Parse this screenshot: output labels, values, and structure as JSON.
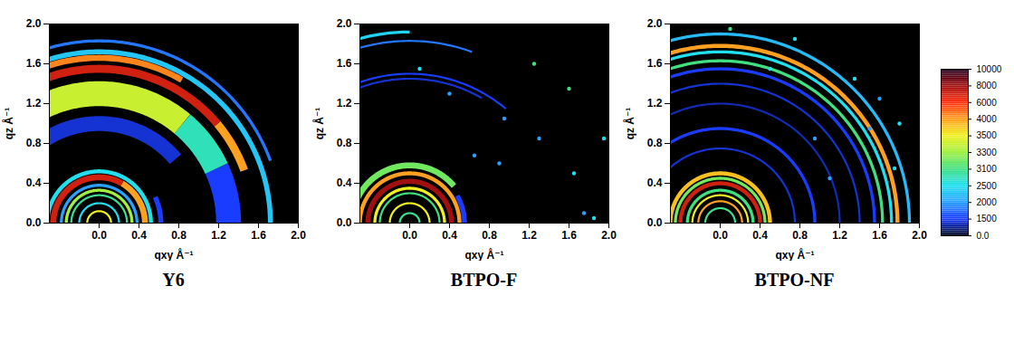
{
  "chart_data": [
    {
      "type": "rings",
      "title": "Y6",
      "xlabel": "qxy Å⁻¹",
      "ylabel": "qz Å⁻¹",
      "xlim": [
        -0.5,
        2.0
      ],
      "ylim": [
        0,
        2.0
      ],
      "xticks": [
        {
          "value": 0,
          "label": "0.0"
        },
        0.4,
        0.8,
        1.2,
        1.6,
        {
          "value": 2,
          "label": "2.0"
        }
      ],
      "yticks": [
        {
          "value": 0,
          "label": "0.0"
        },
        0.4,
        0.8,
        1.2,
        1.6,
        {
          "value": 2,
          "label": "2.0"
        }
      ],
      "rings": [
        {
          "q": 1.0,
          "width": 0.15,
          "from": 40,
          "to": 180,
          "intensity": 1200
        },
        {
          "q": 1.3,
          "width": 0.25,
          "from": 0,
          "to": 25,
          "intensity": 1500
        },
        {
          "q": 1.3,
          "width": 0.25,
          "from": 25,
          "to": 50,
          "intensity": 2800
        },
        {
          "q": 1.3,
          "width": 0.25,
          "from": 50,
          "to": 180,
          "intensity": 3400
        },
        {
          "q": 1.83,
          "width": 0.03,
          "from": 20,
          "to": 180,
          "intensity": 1800
        },
        {
          "q": 1.72,
          "width": 0.05,
          "from": 0,
          "to": 180,
          "intensity": 2300
        },
        {
          "q": 1.55,
          "width": 0.08,
          "from": 20,
          "to": 40,
          "intensity": 4000
        },
        {
          "q": 1.66,
          "width": 0.06,
          "from": 60,
          "to": 180,
          "intensity": 4500
        },
        {
          "q": 1.55,
          "width": 0.08,
          "from": 40,
          "to": 180,
          "intensity": 7000
        },
        {
          "q": 0.62,
          "width": 0.05,
          "from": 0,
          "to": 25,
          "intensity": 1500
        },
        {
          "q": 0.52,
          "width": 0.04,
          "from": 0,
          "to": 180,
          "intensity": 2500
        },
        {
          "q": 0.46,
          "width": 0.06,
          "from": 0,
          "to": 60,
          "intensity": 4000
        },
        {
          "q": 0.46,
          "width": 0.06,
          "from": 60,
          "to": 180,
          "intensity": 7000
        },
        {
          "q": 0.38,
          "width": 0.03,
          "from": 0,
          "to": 180,
          "intensity": 2000
        },
        {
          "q": 0.33,
          "width": 0.03,
          "from": 0,
          "to": 180,
          "intensity": 3300
        },
        {
          "q": 0.28,
          "width": 0.02,
          "from": 0,
          "to": 180,
          "intensity": 3000
        },
        {
          "q": 0.2,
          "width": 0.02,
          "from": 0,
          "to": 180,
          "intensity": 2500
        },
        {
          "q": 0.12,
          "width": 0.02,
          "from": 0,
          "to": 180,
          "intensity": 3500
        }
      ],
      "spots": []
    },
    {
      "type": "rings",
      "title": "BTPO-F",
      "xlabel": "qxy Å⁻¹",
      "ylabel": "qz Å⁻¹",
      "xlim": [
        -0.5,
        2.0
      ],
      "ylim": [
        0,
        2.0
      ],
      "xticks": [
        {
          "value": 0,
          "label": "0.0"
        },
        0.4,
        0.8,
        1.2,
        1.6,
        {
          "value": 2,
          "label": "2.0"
        }
      ],
      "yticks": [
        {
          "value": 0,
          "label": "0.0"
        },
        0.4,
        0.8,
        1.2,
        1.6,
        {
          "value": 2,
          "label": "2.0"
        }
      ],
      "rings": [
        {
          "q": 1.45,
          "width": 0.02,
          "from": 60,
          "to": 180,
          "intensity": 1200
        },
        {
          "q": 1.5,
          "width": 0.02,
          "from": 50,
          "to": 180,
          "intensity": 1500
        },
        {
          "q": 1.83,
          "width": 0.02,
          "from": 70,
          "to": 180,
          "intensity": 1800
        },
        {
          "q": 1.92,
          "width": 0.03,
          "from": 90,
          "to": 180,
          "intensity": 2400
        },
        {
          "q": 0.55,
          "width": 0.05,
          "from": 0,
          "to": 30,
          "intensity": 1500
        },
        {
          "q": 0.58,
          "width": 0.06,
          "from": 40,
          "to": 180,
          "intensity": 3200
        },
        {
          "q": 0.5,
          "width": 0.04,
          "from": 0,
          "to": 180,
          "intensity": 4000
        },
        {
          "q": 0.42,
          "width": 0.05,
          "from": 0,
          "to": 180,
          "intensity": 8000
        },
        {
          "q": 0.35,
          "width": 0.03,
          "from": 0,
          "to": 180,
          "intensity": 3500
        },
        {
          "q": 0.3,
          "width": 0.02,
          "from": 0,
          "to": 180,
          "intensity": 3100
        },
        {
          "q": 0.2,
          "width": 0.02,
          "from": 0,
          "to": 180,
          "intensity": 3500
        },
        {
          "q": 0.1,
          "width": 0.02,
          "from": 0,
          "to": 180,
          "intensity": 3000
        }
      ],
      "spots": [
        {
          "qxy": 1.6,
          "qz": 1.35,
          "intensity": 3100
        },
        {
          "qxy": 1.95,
          "qz": 0.85,
          "intensity": 2500
        },
        {
          "qxy": 1.3,
          "qz": 0.85,
          "intensity": 2000
        },
        {
          "qxy": 0.9,
          "qz": 0.6,
          "intensity": 2000
        },
        {
          "qxy": 1.65,
          "qz": 0.5,
          "intensity": 2500
        },
        {
          "qxy": 1.75,
          "qz": 0.1,
          "intensity": 2000
        },
        {
          "qxy": 1.85,
          "qz": 0.05,
          "intensity": 2500
        },
        {
          "qxy": 0.95,
          "qz": 1.05,
          "intensity": 2000
        },
        {
          "qxy": 0.65,
          "qz": 0.68,
          "intensity": 2000
        },
        {
          "qxy": 0.4,
          "qz": 1.3,
          "intensity": 2000
        },
        {
          "qxy": 0.1,
          "qz": 1.55,
          "intensity": 2500
        },
        {
          "qxy": 1.25,
          "qz": 1.6,
          "intensity": 3100
        }
      ]
    },
    {
      "type": "rings",
      "title": "BTPO-NF",
      "xlabel": "qxy Å⁻¹",
      "ylabel": "qz Å⁻¹",
      "xlim": [
        -0.5,
        2.0
      ],
      "ylim": [
        0,
        2.0
      ],
      "xticks": [
        {
          "value": 0,
          "label": "0.0"
        },
        0.4,
        0.8,
        1.2,
        1.6,
        {
          "value": 2,
          "label": "2.0"
        }
      ],
      "yticks": [
        {
          "value": 0,
          "label": "0.0"
        },
        0.4,
        0.8,
        1.2,
        1.6,
        {
          "value": 2,
          "label": "2.0"
        }
      ],
      "rings": [
        {
          "q": 0.75,
          "width": 0.02,
          "from": 0,
          "to": 180,
          "intensity": 1200
        },
        {
          "q": 1.2,
          "width": 0.02,
          "from": 0,
          "to": 180,
          "intensity": 1000
        },
        {
          "q": 1.4,
          "width": 0.02,
          "from": 0,
          "to": 180,
          "intensity": 1200
        },
        {
          "q": 0.95,
          "width": 0.03,
          "from": 0,
          "to": 180,
          "intensity": 1500
        },
        {
          "q": 1.55,
          "width": 0.03,
          "from": 0,
          "to": 180,
          "intensity": 1500
        },
        {
          "q": 1.9,
          "width": 0.03,
          "from": 0,
          "to": 180,
          "intensity": 2200
        },
        {
          "q": 1.72,
          "width": 0.03,
          "from": 0,
          "to": 180,
          "intensity": 2500
        },
        {
          "q": 1.63,
          "width": 0.03,
          "from": 0,
          "to": 180,
          "intensity": 3100
        },
        {
          "q": 1.78,
          "width": 0.04,
          "from": 0,
          "to": 180,
          "intensity": 4000
        },
        {
          "q": 0.5,
          "width": 0.04,
          "from": 0,
          "to": 180,
          "intensity": 3800
        },
        {
          "q": 0.45,
          "width": 0.03,
          "from": 0,
          "to": 180,
          "intensity": 3200
        },
        {
          "q": 0.4,
          "width": 0.04,
          "from": 0,
          "to": 180,
          "intensity": 7000
        },
        {
          "q": 0.33,
          "width": 0.03,
          "from": 0,
          "to": 180,
          "intensity": 3100
        },
        {
          "q": 0.28,
          "width": 0.02,
          "from": 0,
          "to": 180,
          "intensity": 3500
        },
        {
          "q": 0.22,
          "width": 0.02,
          "from": 0,
          "to": 180,
          "intensity": 4000
        },
        {
          "q": 0.15,
          "width": 0.02,
          "from": 0,
          "to": 180,
          "intensity": 3000
        }
      ],
      "spots": [
        {
          "qxy": 0.75,
          "qz": 1.85,
          "intensity": 2500
        },
        {
          "qxy": 1.35,
          "qz": 1.45,
          "intensity": 2500
        },
        {
          "qxy": 1.5,
          "qz": 0.95,
          "intensity": 2000
        },
        {
          "qxy": 0.95,
          "qz": 0.85,
          "intensity": 2000
        },
        {
          "qxy": 1.75,
          "qz": 0.55,
          "intensity": 2500
        },
        {
          "qxy": 1.1,
          "qz": 0.45,
          "intensity": 2000
        },
        {
          "qxy": 0.5,
          "qz": 1.55,
          "intensity": 2500
        },
        {
          "qxy": 0.1,
          "qz": 1.95,
          "intensity": 3100
        },
        {
          "qxy": 1.6,
          "qz": 1.25,
          "intensity": 2000
        },
        {
          "qxy": 1.8,
          "qz": 1.0,
          "intensity": 2500
        }
      ]
    }
  ],
  "colorbar": {
    "ticks": [
      {
        "value": 0,
        "label": "0.0"
      },
      1500,
      2000,
      2500,
      3100,
      3300,
      3500,
      4000,
      6000,
      8000,
      10000
    ],
    "colors": [
      "#000820",
      "#1a3cff",
      "#2aa0ff",
      "#20e0f0",
      "#40e080",
      "#a0f040",
      "#f0f020",
      "#ffa020",
      "#ff3010",
      "#a01010",
      "#200020"
    ]
  }
}
